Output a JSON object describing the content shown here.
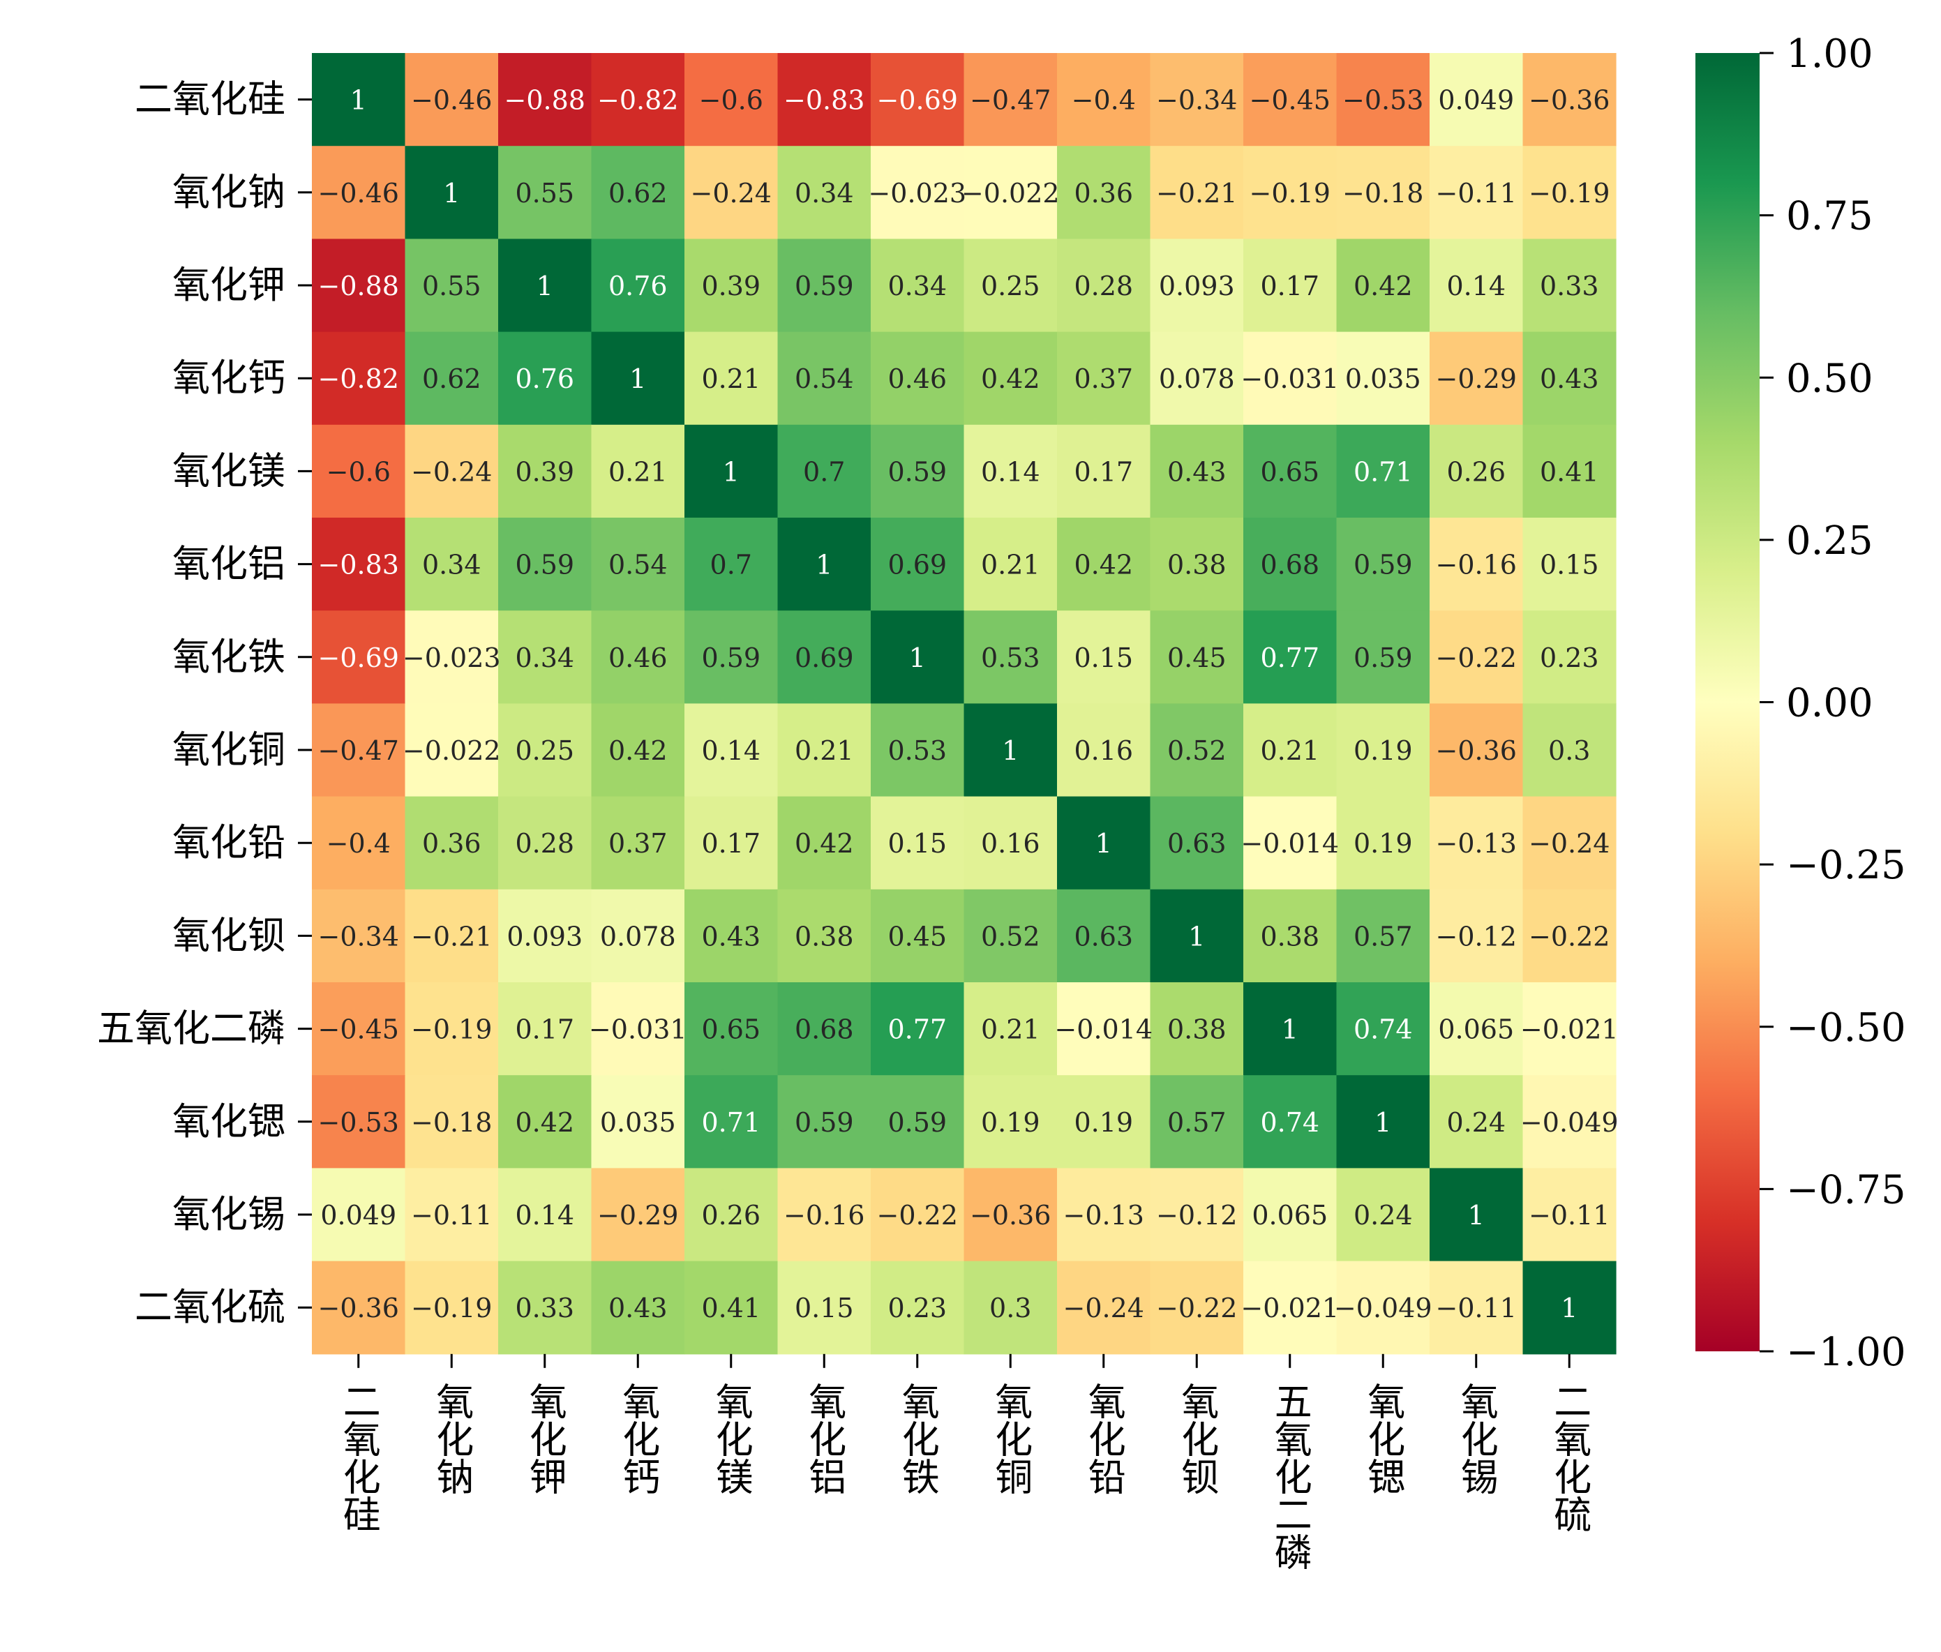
{
  "chart_data": {
    "type": "heatmap",
    "title": "",
    "xlabel": "",
    "ylabel": "",
    "labels": [
      "二氧化硅",
      "氧化钠",
      "氧化钾",
      "氧化钙",
      "氧化镁",
      "氧化铝",
      "氧化铁",
      "氧化铜",
      "氧化铅",
      "氧化钡",
      "五氧化二磷",
      "氧化锶",
      "氧化锡",
      "二氧化硫"
    ],
    "matrix": [
      [
        1,
        -0.46,
        -0.88,
        -0.82,
        -0.6,
        -0.83,
        -0.69,
        -0.47,
        -0.4,
        -0.34,
        -0.45,
        -0.53,
        0.049,
        -0.36
      ],
      [
        -0.46,
        1,
        0.55,
        0.62,
        -0.24,
        0.34,
        -0.023,
        -0.022,
        0.36,
        -0.21,
        -0.19,
        -0.18,
        -0.11,
        -0.19
      ],
      [
        -0.88,
        0.55,
        1,
        0.76,
        0.39,
        0.59,
        0.34,
        0.25,
        0.28,
        0.093,
        0.17,
        0.42,
        0.14,
        0.33
      ],
      [
        -0.82,
        0.62,
        0.76,
        1,
        0.21,
        0.54,
        0.46,
        0.42,
        0.37,
        0.078,
        -0.031,
        0.035,
        -0.29,
        0.43
      ],
      [
        -0.6,
        -0.24,
        0.39,
        0.21,
        1,
        0.7,
        0.59,
        0.14,
        0.17,
        0.43,
        0.65,
        0.71,
        0.26,
        0.41
      ],
      [
        -0.83,
        0.34,
        0.59,
        0.54,
        0.7,
        1,
        0.69,
        0.21,
        0.42,
        0.38,
        0.68,
        0.59,
        -0.16,
        0.15
      ],
      [
        -0.69,
        -0.023,
        0.34,
        0.46,
        0.59,
        0.69,
        1,
        0.53,
        0.15,
        0.45,
        0.77,
        0.59,
        -0.22,
        0.23
      ],
      [
        -0.47,
        -0.022,
        0.25,
        0.42,
        0.14,
        0.21,
        0.53,
        1,
        0.16,
        0.52,
        0.21,
        0.19,
        -0.36,
        0.3
      ],
      [
        -0.4,
        0.36,
        0.28,
        0.37,
        0.17,
        0.42,
        0.15,
        0.16,
        1,
        0.63,
        -0.014,
        0.19,
        -0.13,
        -0.24
      ],
      [
        -0.34,
        -0.21,
        0.093,
        0.078,
        0.43,
        0.38,
        0.45,
        0.52,
        0.63,
        1,
        0.38,
        0.57,
        -0.12,
        -0.22
      ],
      [
        -0.45,
        -0.19,
        0.17,
        -0.031,
        0.65,
        0.68,
        0.77,
        0.21,
        -0.014,
        0.38,
        1,
        0.74,
        0.065,
        -0.021
      ],
      [
        -0.53,
        -0.18,
        0.42,
        0.035,
        0.71,
        0.59,
        0.59,
        0.19,
        0.19,
        0.57,
        0.74,
        1,
        0.24,
        -0.049
      ],
      [
        0.049,
        -0.11,
        0.14,
        -0.29,
        0.26,
        -0.16,
        -0.22,
        -0.36,
        -0.13,
        -0.12,
        0.065,
        0.24,
        1,
        -0.11
      ],
      [
        -0.36,
        -0.19,
        0.33,
        0.43,
        0.41,
        0.15,
        0.23,
        0.3,
        -0.24,
        -0.22,
        -0.021,
        -0.049,
        -0.11,
        1
      ]
    ],
    "colorbar": {
      "range": [
        -1,
        1
      ],
      "ticks": [
        1.0,
        0.75,
        0.5,
        0.25,
        0.0,
        -0.25,
        -0.5,
        -0.75,
        -1.0
      ],
      "tick_labels": [
        "1.00",
        "0.75",
        "0.50",
        "0.25",
        "0.00",
        "−0.25",
        "−0.50",
        "−0.75",
        "−1.00"
      ],
      "colormap": "RdYlGn",
      "colormap_stops": [
        "#a50026",
        "#d73027",
        "#f46d43",
        "#fdae61",
        "#fee08b",
        "#ffffbf",
        "#d9ef8b",
        "#a6d96a",
        "#66bd63",
        "#1a9850",
        "#006837"
      ]
    },
    "annotate": true,
    "grid": false,
    "legend": "colorbar-right"
  }
}
